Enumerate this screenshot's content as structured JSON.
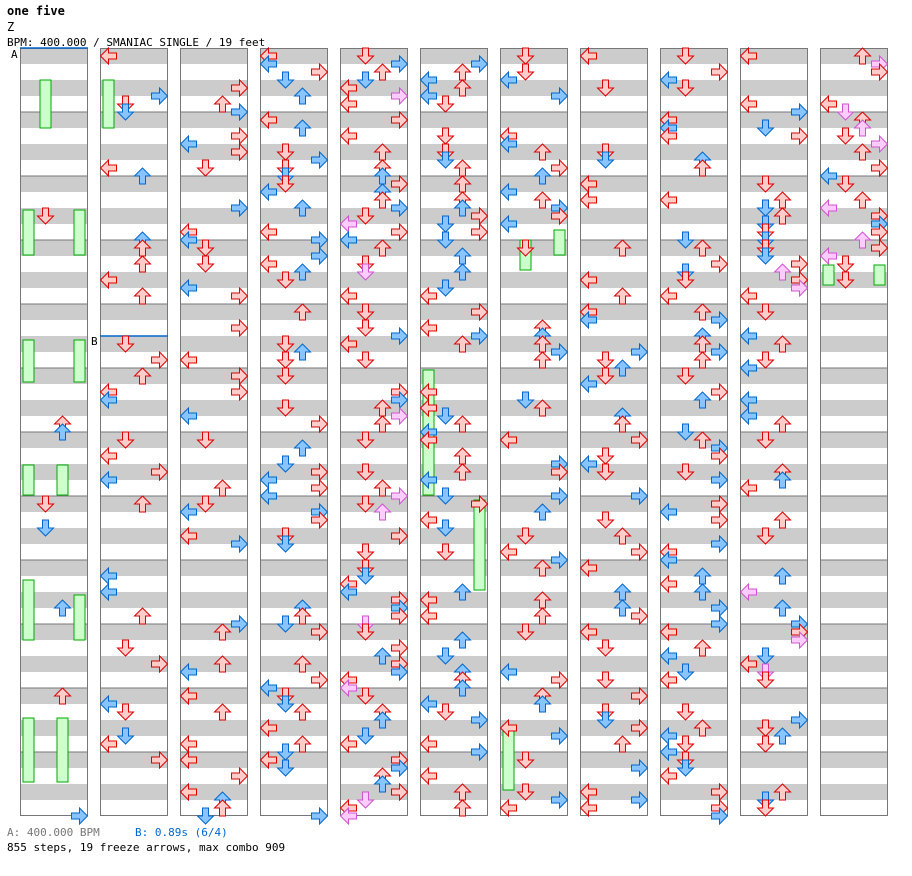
{
  "song": {
    "title": "one five",
    "artist": "Z",
    "info": "BPM: 400.000 / SMANIAC SINGLE / 19 feet"
  },
  "markers": {
    "a_label": "A",
    "b_label": "B"
  },
  "footer": {
    "bpm_note": "A: 400.000 BPM",
    "stop_note": "B: 0.89s (6/4)",
    "stats": "855 steps, 19 freeze arrows, max combo 909"
  },
  "colors": {
    "quarter": {
      "fill": "#ffcccc",
      "stroke": "#dd0000"
    },
    "eighth": {
      "fill": "#88c4ff",
      "stroke": "#0066cc"
    },
    "sixteenth": {
      "fill": "#ffccff",
      "stroke": "#cc55cc"
    },
    "freeze": {
      "fill": "#ccffcc",
      "stroke": "#00aa00"
    },
    "marker": "#0066cc"
  },
  "chart_info": {
    "columns": 11,
    "measures_per_column": 12,
    "total_measures": 125
  }
}
